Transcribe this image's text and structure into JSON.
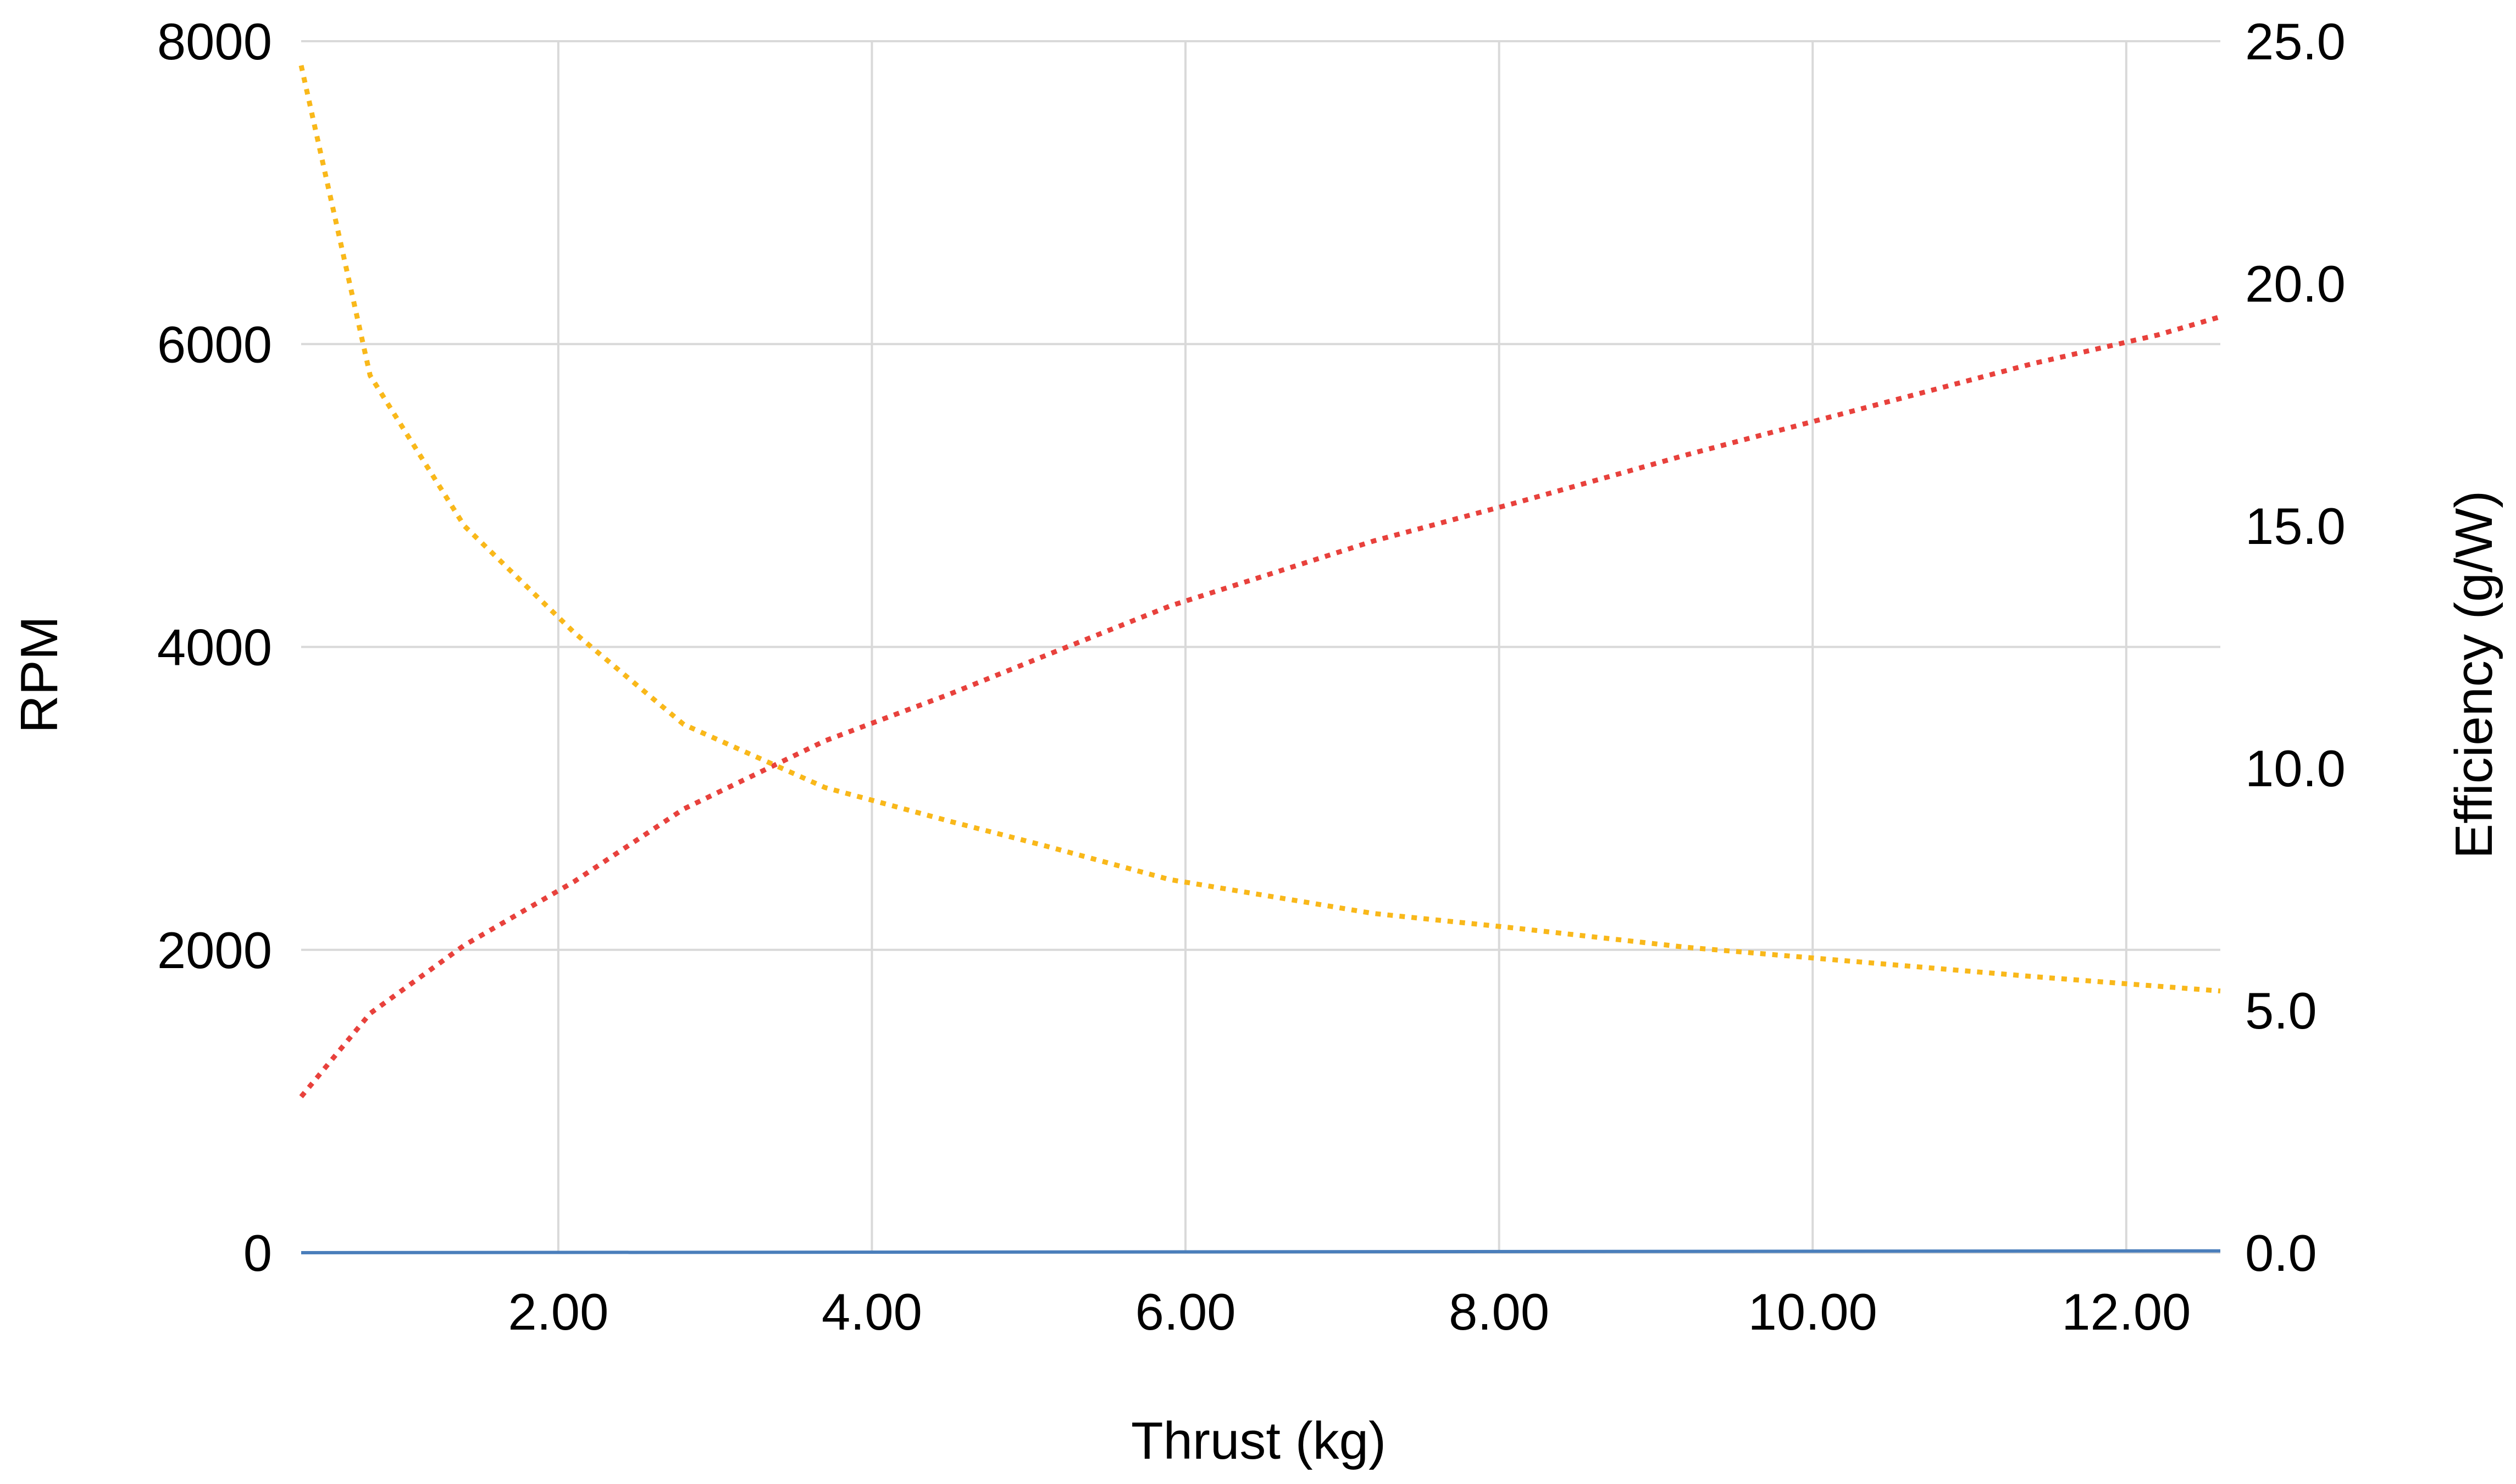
{
  "chart_data": {
    "type": "line",
    "title": "",
    "xlabel": "Thrust (kg)",
    "ylabel": "RPM",
    "y2label": "Efficiency (g/W)",
    "xlim": [
      0.36,
      12.6
    ],
    "ylim": [
      0,
      8000
    ],
    "y2lim": [
      0,
      25
    ],
    "xticks": [
      2,
      4,
      6,
      8,
      10,
      12
    ],
    "xtick_labels": [
      "2.00",
      "4.00",
      "6.00",
      "8.00",
      "10.00",
      "12.00"
    ],
    "yticks": [
      0,
      2000,
      4000,
      6000,
      8000
    ],
    "ytick_labels": [
      "0",
      "2000",
      "4000",
      "6000",
      "8000"
    ],
    "y2ticks": [
      0,
      5,
      10,
      15,
      20,
      25
    ],
    "y2tick_labels": [
      "0.0",
      "5.0",
      "10.0",
      "15.0",
      "20.0",
      "25.0"
    ],
    "grid": true,
    "legend": "none",
    "colors": {
      "rpm": "#e8413c",
      "efficiency": "#f9b81a",
      "base": "#4a7ebb",
      "grid": "#d9d9d9"
    },
    "series": [
      {
        "axis": "left",
        "style": "dotted",
        "color": "#e8413c",
        "x": [
          0.36,
          0.8,
          1.4,
          2.1,
          2.8,
          3.7,
          4.5,
          5.1,
          5.9,
          7.2,
          8.1,
          9.2,
          10.3,
          11.4,
          12.2,
          12.6
        ],
        "y": [
          1030,
          1580,
          2030,
          2450,
          2930,
          3380,
          3690,
          3940,
          4270,
          4700,
          4950,
          5270,
          5570,
          5870,
          6060,
          6180
        ]
      },
      {
        "axis": "right",
        "style": "dotted",
        "color": "#f9b81a",
        "x": [
          0.36,
          0.8,
          1.4,
          2.1,
          2.8,
          3.7,
          4.5,
          5.1,
          5.9,
          7.2,
          8.1,
          9.2,
          10.3,
          11.4,
          12.2,
          12.6
        ],
        "y": [
          24.5,
          18.1,
          15.0,
          12.8,
          10.9,
          9.6,
          8.9,
          8.4,
          7.7,
          7.0,
          6.7,
          6.3,
          6.0,
          5.7,
          5.5,
          5.4
        ]
      },
      {
        "axis": "left",
        "style": "solid",
        "color": "#4a7ebb",
        "x": [
          0.36,
          12.6
        ],
        "y": [
          0,
          12
        ]
      }
    ]
  }
}
